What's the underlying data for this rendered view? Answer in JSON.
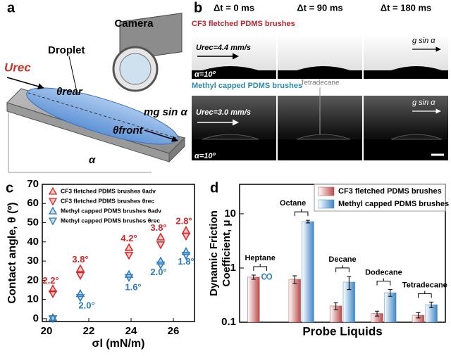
{
  "panel_labels": [
    "a",
    "b",
    "c",
    "d"
  ],
  "panel_a": {
    "camera": "Camera",
    "droplet": "Droplet",
    "velocity": "Urec",
    "theta_rear": "θrear",
    "theta_front": "θfront",
    "force": "mg sin α",
    "angle": "α"
  },
  "panel_b": {
    "times": [
      "Δt = 0 ms",
      "Δt = 90 ms",
      "Δt = 180 ms"
    ],
    "rows": [
      {
        "title": "CF3 fletched PDMS brushes",
        "velocity": "Urec=4.4 mm/s",
        "tilt": "α=10º",
        "gravity": "g sin α"
      },
      {
        "title": "Methyl capped PDMS brushes",
        "velocity": "Urec=3.0 mm/s",
        "tilt": "α=10º",
        "gravity": "g sin α",
        "note": "Tetradecane"
      }
    ]
  },
  "chart_data": [
    {
      "type": "scatter",
      "x_label": "σl (mN/m)",
      "y_label": "Contact angle, θ (º)",
      "xlim": [
        19.8,
        27.0
      ],
      "xticks": [
        20,
        22,
        24,
        26
      ],
      "ylim": [
        -1.5,
        70
      ],
      "yticks": [
        0,
        10,
        20,
        30,
        40,
        50,
        60,
        70
      ],
      "x": [
        20.3,
        21.6,
        23.9,
        25.4,
        26.6
      ],
      "series": [
        {
          "name": "CF3 fletched PDMS brushes θadv",
          "color": "#d62728",
          "marker": "up",
          "values": [
            15.5,
            26,
            37,
            42.5,
            46
          ]
        },
        {
          "name": "CF3 fletched PDMS brushes θrec",
          "color": "#d62728",
          "marker": "down",
          "values": [
            13,
            22.5,
            33,
            38.5,
            43
          ]
        },
        {
          "name": "Methyl capped PDMS brushes θadv",
          "color": "#2b7bba",
          "marker": "up",
          "values": [
            0.5,
            13,
            23,
            30,
            35
          ]
        },
        {
          "name": "Methyl capped PDMS brushes θrec",
          "color": "#2b7bba",
          "marker": "down",
          "values": [
            0,
            11,
            21.5,
            28,
            33
          ]
        }
      ],
      "annotations": [
        {
          "text": "2.2°",
          "x": 20.2,
          "y": 19.5,
          "color": "#d62728"
        },
        {
          "text": "3.8°",
          "x": 21.6,
          "y": 30.5,
          "color": "#d62728"
        },
        {
          "text": "4.2°",
          "x": 23.9,
          "y": 41.5,
          "color": "#d62728"
        },
        {
          "text": "3.8°",
          "x": 25.3,
          "y": 47,
          "color": "#d62728"
        },
        {
          "text": "2.8°",
          "x": 26.5,
          "y": 50.5,
          "color": "#d62728"
        },
        {
          "text": "2.0°",
          "x": 21.9,
          "y": 6.5,
          "color": "#2b7bba"
        },
        {
          "text": "1.6°",
          "x": 24.1,
          "y": 16,
          "color": "#2b7bba"
        },
        {
          "text": "2.0°",
          "x": 25.3,
          "y": 24,
          "color": "#2b7bba"
        },
        {
          "text": "1.8°",
          "x": 26.6,
          "y": 29.5,
          "color": "#2b7bba"
        }
      ]
    },
    {
      "type": "bar",
      "x_label": "Probe Liquids",
      "y_label": [
        "Dynamic Friction",
        "Coefficient, μ"
      ],
      "log_scale": true,
      "ylim": [
        0.1,
        35
      ],
      "yticks": [
        0.1,
        1,
        10
      ],
      "categories": [
        "Heptane",
        "Octane",
        "Decane",
        "Dodecane",
        "Tetradecane"
      ],
      "series": [
        {
          "name": "CF3 fletched PDMS brushes",
          "color": "#b94a4a",
          "values": [
            0.68,
            0.62,
            0.2,
            0.145,
            0.135
          ],
          "errors": [
            0.06,
            0.1,
            0.03,
            0.015,
            0.015
          ]
        },
        {
          "name": "Methyl capped PDMS brushes",
          "color": "#3f86c6",
          "values": [
            null,
            7.2,
            0.55,
            0.35,
            0.21
          ],
          "errors": [
            null,
            0.4,
            0.15,
            0.05,
            0.025
          ]
        }
      ],
      "infinity_label": "∞"
    }
  ]
}
